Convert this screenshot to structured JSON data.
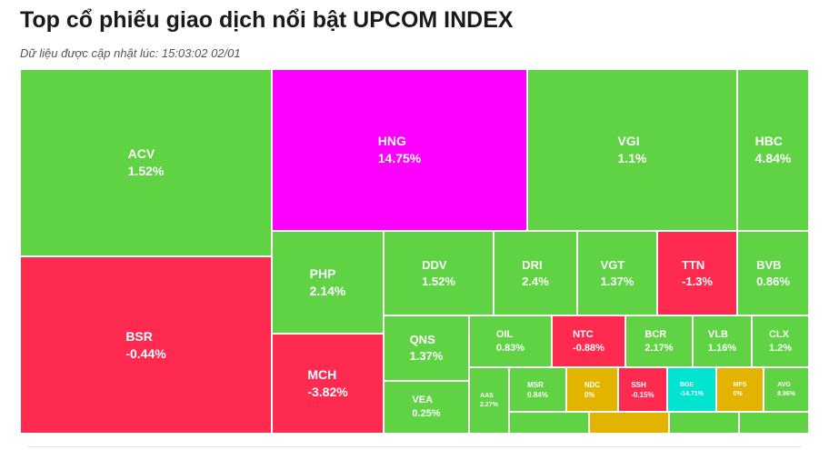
{
  "header": {
    "title": "Top cổ phiếu giao dịch nổi bật UPCOM INDEX",
    "updated": "Dữ liệu được cập nhật lúc: 15:03:02 02/01"
  },
  "colors": {
    "up": "#5fd344",
    "down": "#ff2a4f",
    "ceiling": "#ff00ff",
    "floor": "#00e5d0",
    "ref": "#e2b400"
  },
  "tiles": {
    "acv": {
      "symbol": "ACV",
      "change": "1.52%"
    },
    "bsr": {
      "symbol": "BSR",
      "change": "-0.44%"
    },
    "hng": {
      "symbol": "HNG",
      "change": "14.75%"
    },
    "vgi": {
      "symbol": "VGI",
      "change": "1.1%"
    },
    "hbc": {
      "symbol": "HBC",
      "change": "4.84%"
    },
    "php": {
      "symbol": "PHP",
      "change": "2.14%"
    },
    "mch": {
      "symbol": "MCH",
      "change": "-3.82%"
    },
    "ddv": {
      "symbol": "DDV",
      "change": "1.52%"
    },
    "dri": {
      "symbol": "DRI",
      "change": "2.4%"
    },
    "vgt": {
      "symbol": "VGT",
      "change": "1.37%"
    },
    "ttn": {
      "symbol": "TTN",
      "change": "-1.3%"
    },
    "bvb": {
      "symbol": "BVB",
      "change": "0.86%"
    },
    "qns": {
      "symbol": "QNS",
      "change": "1.37%"
    },
    "vea": {
      "symbol": "VEA",
      "change": "0.25%"
    },
    "oil": {
      "symbol": "OIL",
      "change": "0.83%"
    },
    "ntc": {
      "symbol": "NTC",
      "change": "-0.88%"
    },
    "bcr": {
      "symbol": "BCR",
      "change": "2.17%"
    },
    "vlb": {
      "symbol": "VLB",
      "change": "1.16%"
    },
    "clx": {
      "symbol": "CLX",
      "change": "1.2%"
    },
    "aas": {
      "symbol": "AAS",
      "change": "2.27%"
    },
    "msr": {
      "symbol": "MSR",
      "change": "0.84%"
    },
    "ndc": {
      "symbol": "NDC",
      "change": "0%"
    },
    "ssh": {
      "symbol": "SSH",
      "change": "-0.15%"
    },
    "bge": {
      "symbol": "BGE",
      "change": "-14.71%"
    },
    "mfs": {
      "symbol": "MFS",
      "change": "0%"
    },
    "avg": {
      "symbol": "AVG",
      "change": "8.96%"
    }
  }
}
